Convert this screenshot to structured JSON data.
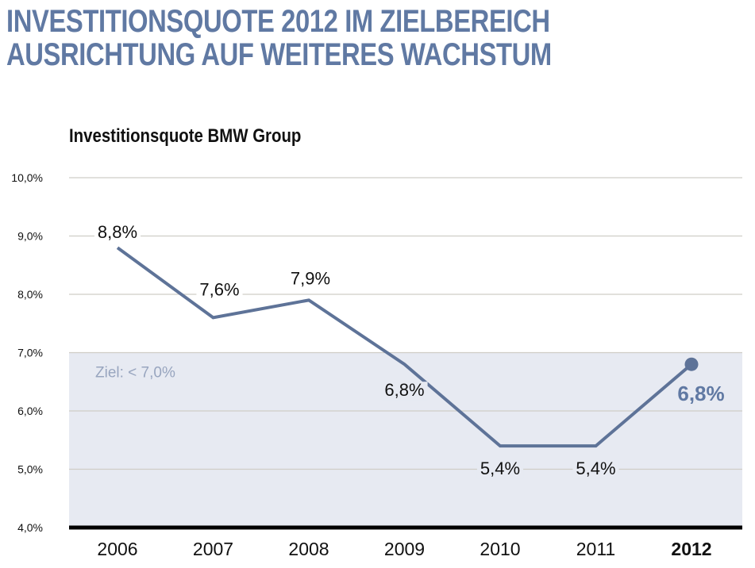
{
  "header": {
    "line1": "INVESTITIONSQUOTE 2012 IM ZIELBEREICH",
    "line2": "AUSRICHTUNG AUF WEITERES WACHSTUM"
  },
  "colors": {
    "accent": "#6079a3",
    "line": "#5e7398",
    "target_band": "#e7eaf2",
    "target_text": "#98a5bf",
    "grid": "#cfcdc7",
    "axis": "#000000"
  },
  "chart_data": {
    "type": "line",
    "title": "Investitionsquote BMW Group",
    "xlabel": "",
    "ylabel": "",
    "categories": [
      "2006",
      "2007",
      "2008",
      "2009",
      "2010",
      "2011",
      "2012"
    ],
    "highlight_category": "2012",
    "series": [
      {
        "name": "Investitionsquote",
        "values": [
          8.8,
          7.6,
          7.9,
          6.8,
          5.4,
          5.4,
          6.8
        ],
        "labels": [
          "8,8%",
          "7,6%",
          "7,9%",
          "6,8%",
          "5,4%",
          "5,4%",
          "6,8%"
        ]
      }
    ],
    "ylim": [
      4.0,
      10.0
    ],
    "yticks": [
      4.0,
      5.0,
      6.0,
      7.0,
      8.0,
      9.0,
      10.0
    ],
    "ytick_labels": [
      "4,0%",
      "5,0%",
      "6,0%",
      "7,0%",
      "8,0%",
      "9,0%",
      "10,0%"
    ],
    "grid": true,
    "target": {
      "label": "Ziel: < 7,0%",
      "max": 7.0
    }
  }
}
